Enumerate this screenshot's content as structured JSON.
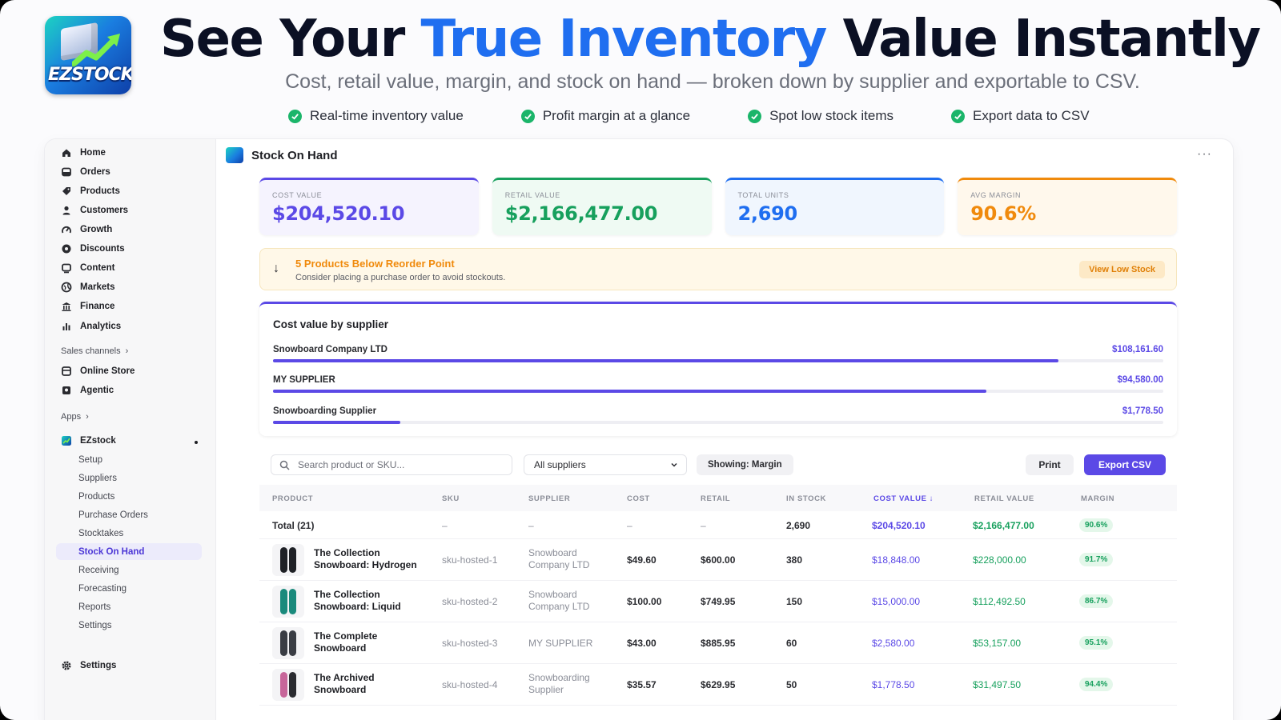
{
  "hero": {
    "logo_text": "EZSTOCK",
    "title_pre": "See Your ",
    "title_accent": "True Inventory",
    "title_post": " Value Instantly",
    "subtitle": "Cost, retail value, margin, and stock on hand — broken down by supplier and exportable to CSV.",
    "features": [
      "Real-time inventory value",
      "Profit margin at a glance",
      "Spot low stock items",
      "Export data to CSV"
    ]
  },
  "sidebar": {
    "nav": [
      {
        "label": "Home",
        "icon": "home-icon"
      },
      {
        "label": "Orders",
        "icon": "orders-icon"
      },
      {
        "label": "Products",
        "icon": "tag-icon"
      },
      {
        "label": "Customers",
        "icon": "person-icon"
      },
      {
        "label": "Growth",
        "icon": "growth-icon"
      },
      {
        "label": "Discounts",
        "icon": "discount-icon"
      },
      {
        "label": "Content",
        "icon": "content-icon"
      },
      {
        "label": "Markets",
        "icon": "globe-icon"
      },
      {
        "label": "Finance",
        "icon": "bank-icon"
      },
      {
        "label": "Analytics",
        "icon": "bar-chart-icon"
      }
    ],
    "sales_channels_label": "Sales channels",
    "channels": [
      {
        "label": "Online Store",
        "icon": "store-icon"
      },
      {
        "label": "Agentic",
        "icon": "agent-icon"
      }
    ],
    "apps_label": "Apps",
    "app_name": "EZstock",
    "app_items": [
      "Setup",
      "Suppliers",
      "Products",
      "Purchase Orders",
      "Stocktakes",
      "Stock On Hand",
      "Receiving",
      "Forecasting",
      "Reports",
      "Settings"
    ],
    "active_item": "Stock On Hand",
    "settings_label": "Settings"
  },
  "page": {
    "title": "Stock On Hand",
    "more": "···"
  },
  "kpis": [
    {
      "label": "COST VALUE",
      "value": "$204,520.10",
      "color": "#5b49e6",
      "bg": "#f5f3fe"
    },
    {
      "label": "RETAIL VALUE",
      "value": "$2,166,477.00",
      "color": "#17a05d",
      "bg": "#effaf3"
    },
    {
      "label": "TOTAL UNITS",
      "value": "2,690",
      "color": "#1f6ef0",
      "bg": "#f0f6fe"
    },
    {
      "label": "AVG MARGIN",
      "value": "90.6%",
      "color": "#f08a0c",
      "bg": "#fff8ec"
    }
  ],
  "alert": {
    "icon": "arrow-down-icon",
    "title": "5 Products Below Reorder Point",
    "subtitle": "Consider placing a purchase order to avoid stockouts.",
    "button": "View Low Stock"
  },
  "suppliers": {
    "title": "Cost value by supplier",
    "rows": [
      {
        "name": "Snowboard Company LTD",
        "amount": "$108,161.60",
        "share": 0.8824
      },
      {
        "name": "MY SUPPLIER",
        "amount": "$94,580.00",
        "share": 0.8015
      },
      {
        "name": "Snowboarding Supplier",
        "amount": "$1,778.50",
        "share": 0.1426
      }
    ]
  },
  "toolbar": {
    "search_placeholder": "Search product or SKU...",
    "supplier_filter": "All suppliers",
    "showing": "Showing: Margin",
    "print": "Print",
    "export": "Export CSV"
  },
  "table": {
    "headers": [
      "PRODUCT",
      "SKU",
      "SUPPLIER",
      "COST",
      "RETAIL",
      "IN STOCK",
      "COST VALUE ↓",
      "RETAIL VALUE",
      "MARGIN"
    ],
    "total": {
      "product": "Total (21)",
      "sku": "–",
      "supplier": "–",
      "cost": "–",
      "retail": "–",
      "in_stock": "2,690",
      "cost_value": "$204,520.10",
      "retail_value": "$2,166,477.00",
      "margin": "90.6%"
    },
    "rows": [
      {
        "product": "The Collection Snowboard: Hydrogen",
        "sku": "sku-hosted-1",
        "supplier": "Snowboard Company LTD",
        "cost": "$49.60",
        "retail": "$600.00",
        "in_stock": "380",
        "cost_value": "$18,848.00",
        "retail_value": "$228,000.00",
        "margin": "91.7%",
        "board_color": "#1f2126"
      },
      {
        "product": "The Collection Snowboard: Liquid",
        "sku": "sku-hosted-2",
        "supplier": "Snowboard Company LTD",
        "cost": "$100.00",
        "retail": "$749.95",
        "in_stock": "150",
        "cost_value": "$15,000.00",
        "retail_value": "$112,492.50",
        "margin": "86.7%",
        "board_color": "#1a8a7c"
      },
      {
        "product": "The Complete Snowboard",
        "sku": "sku-hosted-3",
        "supplier": "MY SUPPLIER",
        "cost": "$43.00",
        "retail": "$885.95",
        "in_stock": "60",
        "cost_value": "$2,580.00",
        "retail_value": "$53,157.00",
        "margin": "95.1%",
        "board_color": "#3a3d44"
      },
      {
        "product": "The Archived Snowboard",
        "sku": "sku-hosted-4",
        "supplier": "Snowboarding Supplier",
        "cost": "$35.57",
        "retail": "$629.95",
        "in_stock": "50",
        "cost_value": "$1,778.50",
        "retail_value": "$31,497.50",
        "margin": "94.4%",
        "board_color": "#c7669a"
      }
    ]
  }
}
